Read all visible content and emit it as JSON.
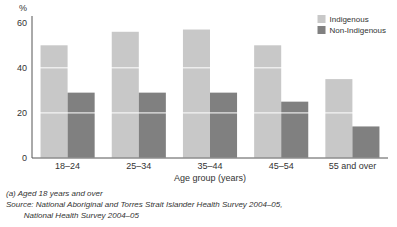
{
  "chart_data": {
    "type": "bar",
    "categories": [
      "18–24",
      "25–34",
      "35–44",
      "45–54",
      "55 and over"
    ],
    "series": [
      {
        "name": "Indigenous",
        "color": "#c8c8c8",
        "values": [
          50,
          56,
          57,
          50,
          35
        ]
      },
      {
        "name": "Non-Indigenous",
        "color": "#808080",
        "values": [
          29,
          29,
          29,
          25,
          14
        ]
      }
    ],
    "x_label": "Age group (years)",
    "y_label": "%",
    "ylim": [
      0,
      63
    ],
    "yticks": [
      0,
      20,
      40,
      60
    ],
    "grid": true,
    "legend": "upper right",
    "annotations": [
      "(a) Aged 18 years and over",
      "Source: National Aboriginal and Torres Strait Islander Health Survey 2004–05,",
      "        National Health Survey 2004–05"
    ]
  }
}
